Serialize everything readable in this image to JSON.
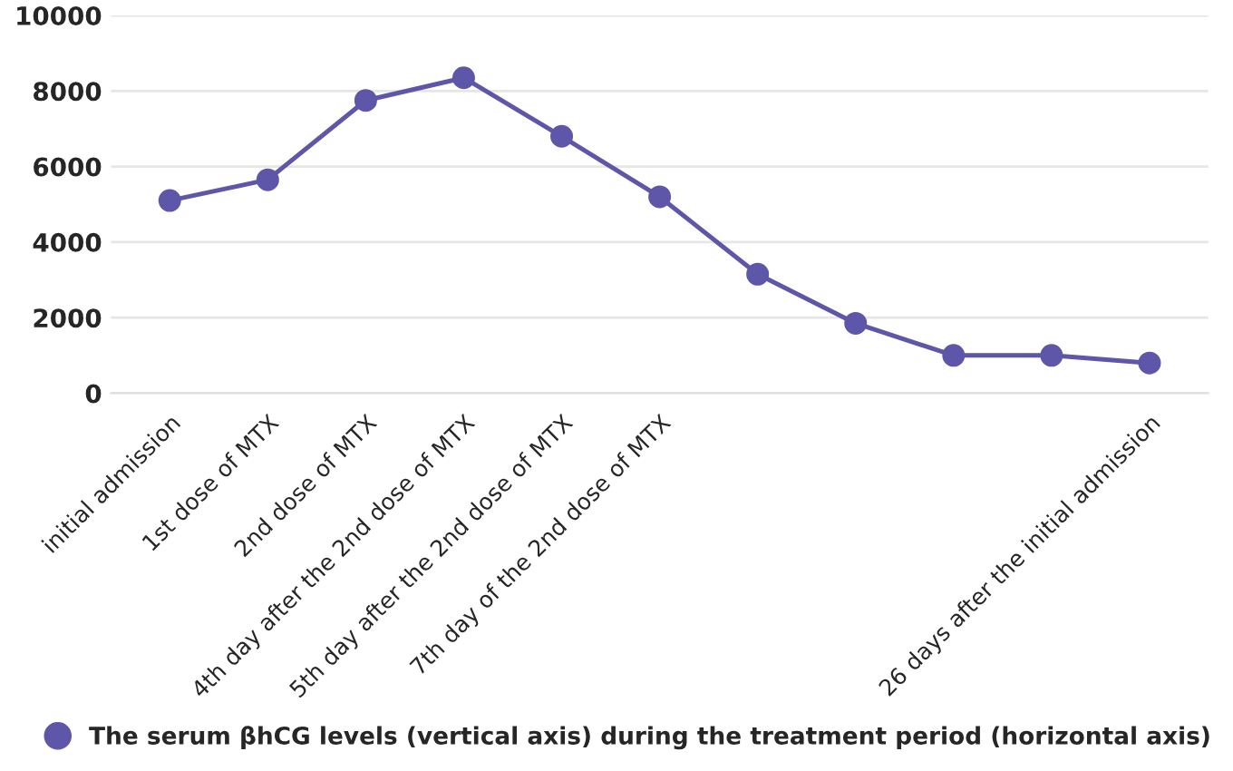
{
  "chart_data": {
    "type": "line",
    "categories": [
      "initial admission",
      "1st dose of MTX",
      "2nd dose of MTX",
      "4th day after the 2nd dose of MTX",
      "5th day after the 2nd dose of MTX",
      "7th day of the 2nd dose of MTX",
      null,
      null,
      null,
      null,
      "26 days after the initial admission"
    ],
    "series": [
      {
        "name": "The serum βhCG levels (vertical axis) during the treatment period (horizontal axis)",
        "color": "#5e56a8",
        "values": [
          5100,
          5650,
          7750,
          8350,
          6800,
          5200,
          3150,
          1850,
          1000,
          1000,
          800
        ]
      }
    ],
    "ylim": [
      0,
      10000
    ],
    "yticks": [
      0,
      2000,
      4000,
      6000,
      8000,
      10000
    ],
    "grid": "y",
    "legend": "bottom",
    "marker": "circle",
    "line_style": "solid"
  }
}
